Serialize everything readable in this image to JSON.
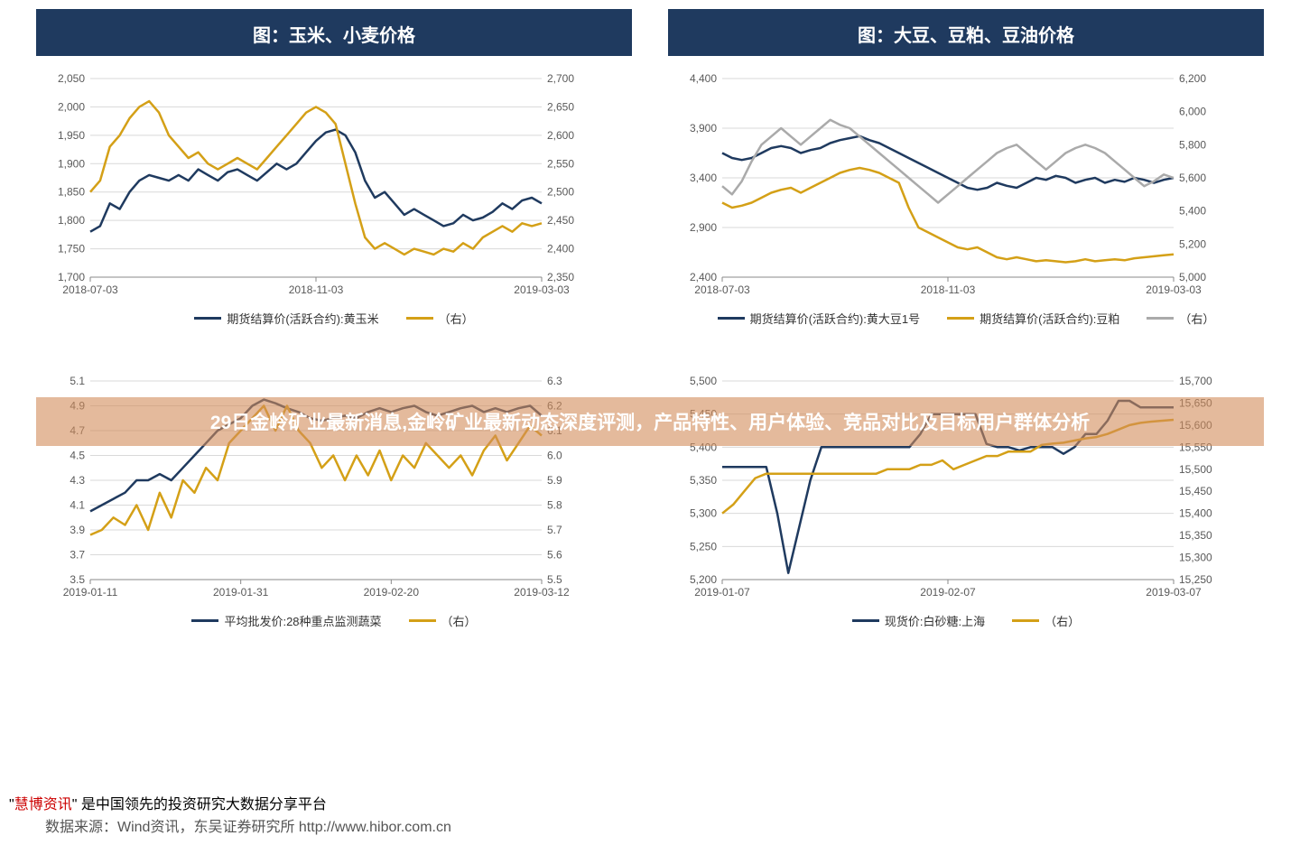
{
  "banner_text": "29日金岭矿业最新消息,金岭矿业最新动态深度评测，产品特性、用户体验、竞品对比及目标用户群体分析",
  "footer_brand": "慧博资讯",
  "footer_text_rest": "\" 是中国领先的投资研究大数据分享平台",
  "footer_quote_open": "\"",
  "footer_source": "数据来源：Wind资讯，东吴证券研究所    http://www.hibor.com.cn",
  "colors": {
    "navy": "#1f3a5f",
    "gold": "#d4a017",
    "grey": "#aaaaaa",
    "grid": "#d9d9d9",
    "axis_text": "#595959"
  },
  "chart1": {
    "title": "图：玉米、小麦价格",
    "type": "line-dual-axis",
    "x_labels": [
      "2018-07-03",
      "2018-11-03",
      "2019-03-03"
    ],
    "y_left": {
      "min": 1700,
      "max": 2050,
      "step": 50
    },
    "y_right": {
      "min": 2350,
      "max": 2700,
      "step": 50
    },
    "legend": [
      {
        "label": "期货结算价(活跃合约):黄玉米",
        "color": "#1f3a5f"
      },
      {
        "label": "（右）",
        "color": "#d4a017"
      }
    ],
    "series": [
      {
        "name": "corn",
        "axis": "left",
        "color": "#1f3a5f",
        "width": 2.5,
        "values": [
          1780,
          1790,
          1830,
          1820,
          1850,
          1870,
          1880,
          1875,
          1870,
          1880,
          1870,
          1890,
          1880,
          1870,
          1885,
          1890,
          1880,
          1870,
          1885,
          1900,
          1890,
          1900,
          1920,
          1940,
          1955,
          1960,
          1950,
          1920,
          1870,
          1840,
          1850,
          1830,
          1810,
          1820,
          1810,
          1800,
          1790,
          1795,
          1810,
          1800,
          1805,
          1815,
          1830,
          1820,
          1835,
          1840,
          1830
        ]
      },
      {
        "name": "wheat",
        "axis": "right",
        "color": "#d4a017",
        "width": 2.5,
        "values": [
          2500,
          2520,
          2580,
          2600,
          2630,
          2650,
          2660,
          2640,
          2600,
          2580,
          2560,
          2570,
          2550,
          2540,
          2550,
          2560,
          2550,
          2540,
          2560,
          2580,
          2600,
          2620,
          2640,
          2650,
          2640,
          2620,
          2550,
          2480,
          2420,
          2400,
          2410,
          2400,
          2390,
          2400,
          2395,
          2390,
          2400,
          2395,
          2410,
          2400,
          2420,
          2430,
          2440,
          2430,
          2445,
          2440,
          2445
        ]
      }
    ]
  },
  "chart2": {
    "title": "图：大豆、豆粕、豆油价格",
    "type": "line-dual-axis",
    "x_labels": [
      "2018-07-03",
      "2018-11-03",
      "2019-03-03"
    ],
    "y_left": {
      "min": 2400,
      "max": 4400,
      "step": 500
    },
    "y_right": {
      "min": 5000,
      "max": 6200,
      "step": 200
    },
    "legend": [
      {
        "label": "期货结算价(活跃合约):黄大豆1号",
        "color": "#1f3a5f"
      },
      {
        "label": "期货结算价(活跃合约):豆粕",
        "color": "#d4a017"
      },
      {
        "label": "（右）",
        "color": "#aaaaaa"
      }
    ],
    "series": [
      {
        "name": "soybean",
        "axis": "left",
        "color": "#1f3a5f",
        "width": 2.5,
        "values": [
          3650,
          3600,
          3580,
          3600,
          3650,
          3700,
          3720,
          3700,
          3650,
          3680,
          3700,
          3750,
          3780,
          3800,
          3820,
          3780,
          3750,
          3700,
          3650,
          3600,
          3550,
          3500,
          3450,
          3400,
          3350,
          3300,
          3280,
          3300,
          3350,
          3320,
          3300,
          3350,
          3400,
          3380,
          3420,
          3400,
          3350,
          3380,
          3400,
          3350,
          3380,
          3360,
          3400,
          3380,
          3350,
          3380,
          3400
        ]
      },
      {
        "name": "meal",
        "axis": "left",
        "color": "#d4a017",
        "width": 2.5,
        "values": [
          3150,
          3100,
          3120,
          3150,
          3200,
          3250,
          3280,
          3300,
          3250,
          3300,
          3350,
          3400,
          3450,
          3480,
          3500,
          3480,
          3450,
          3400,
          3350,
          3100,
          2900,
          2850,
          2800,
          2750,
          2700,
          2680,
          2700,
          2650,
          2600,
          2580,
          2600,
          2580,
          2560,
          2570,
          2560,
          2550,
          2560,
          2580,
          2560,
          2570,
          2580,
          2570,
          2590,
          2600,
          2610,
          2620,
          2630
        ]
      },
      {
        "name": "oil",
        "axis": "right",
        "color": "#aaaaaa",
        "width": 2.5,
        "values": [
          5550,
          5500,
          5580,
          5700,
          5800,
          5850,
          5900,
          5850,
          5800,
          5850,
          5900,
          5950,
          5920,
          5900,
          5850,
          5800,
          5750,
          5700,
          5650,
          5600,
          5550,
          5500,
          5450,
          5500,
          5550,
          5600,
          5650,
          5700,
          5750,
          5780,
          5800,
          5750,
          5700,
          5650,
          5700,
          5750,
          5780,
          5800,
          5780,
          5750,
          5700,
          5650,
          5600,
          5550,
          5580,
          5620,
          5600
        ]
      }
    ]
  },
  "chart3": {
    "title": "",
    "type": "line-dual-axis",
    "x_labels": [
      "2019-01-11",
      "2019-01-31",
      "2019-02-20",
      "2019-03-12"
    ],
    "y_left": {
      "min": 3.5,
      "max": 5.1,
      "step": 0.2
    },
    "y_right": {
      "min": 5.5,
      "max": 6.3,
      "step": 0.1
    },
    "legend": [
      {
        "label": "平均批发价:28种重点监测蔬菜",
        "color": "#1f3a5f"
      },
      {
        "label": "（右）",
        "color": "#d4a017"
      }
    ],
    "series": [
      {
        "name": "veg",
        "axis": "left",
        "color": "#1f3a5f",
        "width": 2.5,
        "values": [
          4.05,
          4.1,
          4.15,
          4.2,
          4.3,
          4.3,
          4.35,
          4.3,
          4.4,
          4.5,
          4.6,
          4.7,
          4.75,
          4.8,
          4.9,
          4.95,
          4.92,
          4.88,
          4.85,
          4.8,
          4.78,
          4.8,
          4.82,
          4.8,
          4.85,
          4.88,
          4.85,
          4.88,
          4.9,
          4.85,
          4.82,
          4.85,
          4.88,
          4.9,
          4.85,
          4.88,
          4.85,
          4.88,
          4.9,
          4.82
        ]
      },
      {
        "name": "veg_r",
        "axis": "right",
        "color": "#d4a017",
        "width": 2.5,
        "values": [
          5.68,
          5.7,
          5.75,
          5.72,
          5.8,
          5.7,
          5.85,
          5.75,
          5.9,
          5.85,
          5.95,
          5.9,
          6.05,
          6.1,
          6.15,
          6.2,
          6.1,
          6.2,
          6.1,
          6.05,
          5.95,
          6.0,
          5.9,
          6.0,
          5.92,
          6.02,
          5.9,
          6.0,
          5.95,
          6.05,
          6.0,
          5.95,
          6.0,
          5.92,
          6.02,
          6.08,
          5.98,
          6.05,
          6.12,
          6.08
        ]
      }
    ]
  },
  "chart4": {
    "title": "",
    "type": "line-dual-axis",
    "x_labels": [
      "2019-01-07",
      "2019-02-07",
      "2019-03-07"
    ],
    "y_left": {
      "min": 5200,
      "max": 5500,
      "step": 50
    },
    "y_right": {
      "min": 15250,
      "max": 15700,
      "step": 50
    },
    "legend": [
      {
        "label": "现货价:白砂糖:上海",
        "color": "#1f3a5f"
      },
      {
        "label": "（右）",
        "color": "#d4a017"
      }
    ],
    "series": [
      {
        "name": "sugar",
        "axis": "left",
        "color": "#1f3a5f",
        "width": 2.5,
        "values": [
          5370,
          5370,
          5370,
          5370,
          5370,
          5300,
          5210,
          5280,
          5350,
          5400,
          5400,
          5400,
          5400,
          5400,
          5400,
          5400,
          5400,
          5400,
          5420,
          5450,
          5450,
          5450,
          5450,
          5450,
          5405,
          5400,
          5400,
          5395,
          5400,
          5400,
          5400,
          5390,
          5400,
          5420,
          5420,
          5440,
          5470,
          5470,
          5460,
          5460,
          5460,
          5460
        ]
      },
      {
        "name": "sugar_r",
        "axis": "right",
        "color": "#d4a017",
        "width": 2.5,
        "values": [
          15400,
          15420,
          15450,
          15480,
          15490,
          15490,
          15490,
          15490,
          15490,
          15490,
          15490,
          15490,
          15490,
          15490,
          15490,
          15500,
          15500,
          15500,
          15510,
          15510,
          15520,
          15500,
          15510,
          15520,
          15530,
          15530,
          15540,
          15540,
          15540,
          15555,
          15558,
          15560,
          15565,
          15570,
          15573,
          15580,
          15590,
          15600,
          15605,
          15608,
          15610,
          15612
        ]
      }
    ]
  }
}
